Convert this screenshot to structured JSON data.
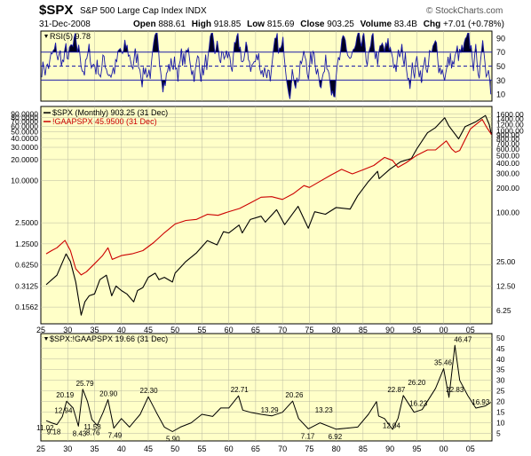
{
  "header": {
    "symbol": "$SPX",
    "description": "S&P 500 Large Cap Index INDX",
    "credit": "© StockCharts.com",
    "date": "31-Dec-2008",
    "ohlc": [
      {
        "label": "Open",
        "value": "888.61"
      },
      {
        "label": "High",
        "value": "918.85"
      },
      {
        "label": "Low",
        "value": "815.69"
      },
      {
        "label": "Close",
        "value": "903.25"
      },
      {
        "label": "Volume",
        "value": "83.4B"
      },
      {
        "label": "Chg",
        "value": "+7.01 (+0.78%)"
      }
    ]
  },
  "colors": {
    "panel_bg": "#ffffc8",
    "rsi": "#1a1aa8",
    "price": "#000000",
    "gaap": "#cc0000",
    "ratio": "#000000",
    "grid": "#b8b8a0"
  },
  "chart_data": [
    {
      "type": "line",
      "name": "rsi-panel",
      "legend": "RSI(5) 9.78",
      "ylim": [
        0,
        100
      ],
      "right_ticks": [
        "90",
        "70",
        "50",
        "30",
        "10"
      ],
      "reference_lines": [
        70,
        50,
        30
      ],
      "fill_thresholds": [
        70,
        30
      ],
      "x_range": [
        1925,
        2009
      ],
      "current_value": 9.78
    },
    {
      "type": "line",
      "name": "price-panel",
      "scale": "log",
      "legend": [
        {
          "text": "$SPX (Monthly) 903.25 (31 Dec)",
          "color": "#000000"
        },
        {
          "text": "!GAAPSPX 45.9500 (31 Dec)",
          "color": "#cc0000"
        }
      ],
      "left_axis_ylim": [
        0.09,
        115
      ],
      "left_ticks": [
        "90.0000",
        "80.0000",
        "70.0000",
        "60.0000",
        "50.0000",
        "40.0000",
        "30.0000",
        "20.0000",
        "10.0000",
        "2.5000",
        "1.2500",
        "0.6250",
        "0.3125",
        "0.1562"
      ],
      "right_axis_ylim": [
        4.3,
        2000
      ],
      "right_ticks": [
        "1600.00",
        "1400.00",
        "1200.00",
        "1000.00",
        "900.00",
        "800.00",
        "700.00",
        "600.00",
        "500.00",
        "400.00",
        "300.00",
        "200.00",
        "100.00",
        "25.00",
        "12.50",
        "6.25"
      ],
      "x_range": [
        1925,
        2009
      ],
      "series": [
        {
          "name": "$SPX (Monthly)",
          "axis": "right",
          "color": "#000000",
          "x": [
            1926,
            1928,
            1929.7,
            1930.5,
            1931.5,
            1932.5,
            1933.2,
            1934,
            1935,
            1936,
            1937.2,
            1938.2,
            1939,
            1940,
            1941,
            1942.3,
            1943,
            1944,
            1945,
            1946.3,
            1947,
            1948,
            1949.5,
            1950,
            1952,
            1954,
            1956,
            1957.8,
            1959,
            1960,
            1961.9,
            1962.5,
            1964,
            1966,
            1966.8,
            1968.9,
            1970.4,
            1972.9,
            1974.8,
            1976,
            1978,
            1980,
            1982.6,
            1984,
            1986,
            1987.7,
            1988,
            1990,
            1992,
            1994,
            1995,
            1997,
            1998.5,
            2000.2,
            2001,
            2002.8,
            2004,
            2006,
            2007.8,
            2008.5,
            2008.9
          ],
          "y": [
            13,
            17,
            31,
            25,
            14,
            5.5,
            8,
            9.5,
            10,
            15,
            17,
            9.5,
            12.5,
            11,
            10,
            8,
            11,
            12,
            16,
            18,
            15,
            16,
            14,
            18,
            25,
            32,
            45,
            40,
            58,
            56,
            70,
            56,
            82,
            90,
            76,
            108,
            71,
            119,
            64,
            102,
            95,
            115,
            110,
            160,
            240,
            320,
            260,
            340,
            420,
            460,
            600,
            950,
            1100,
            1450,
            1150,
            800,
            1130,
            1300,
            1550,
            1200,
            903
          ]
        },
        {
          "name": "!GAAPSPX",
          "axis": "left",
          "color": "#cc0000",
          "x": [
            1926,
            1927,
            1928,
            1929.5,
            1930.5,
            1931.5,
            1932.5,
            1933.5,
            1935,
            1936.5,
            1937.5,
            1938.3,
            1940,
            1942,
            1944,
            1946,
            1948,
            1950,
            1952,
            1954,
            1956,
            1958,
            1960,
            1962,
            1964,
            1966,
            1968,
            1970,
            1972,
            1974,
            1975,
            1977,
            1979,
            1981,
            1983,
            1985,
            1987,
            1989,
            1990.5,
            1991.5,
            1993,
            1995,
            1997,
            1998.5,
            2000.5,
            2001.5,
            2002.2,
            2003,
            2005,
            2007.2,
            2008,
            2008.9
          ],
          "y": [
            0.9,
            1.0,
            1.1,
            1.4,
            1.0,
            0.55,
            0.45,
            0.5,
            0.65,
            0.85,
            1.1,
            0.75,
            0.85,
            0.9,
            1.0,
            1.3,
            1.8,
            2.4,
            2.7,
            2.8,
            3.3,
            3.2,
            3.6,
            4.0,
            4.8,
            5.8,
            5.9,
            5.4,
            6.5,
            8.5,
            8.0,
            9.8,
            12.0,
            14.5,
            12.5,
            14.3,
            16.5,
            21.5,
            19.5,
            15.5,
            18.0,
            23.0,
            27.5,
            27.5,
            37.0,
            28.5,
            25.5,
            27.0,
            55.0,
            75.0,
            58.0,
            45.95
          ]
        }
      ]
    },
    {
      "type": "line",
      "name": "ratio-panel",
      "legend": "$SPX:!GAAPSPX 19.66 (31 Dec)",
      "ylim": [
        1.5,
        52
      ],
      "right_ticks": [
        "50",
        "45",
        "40",
        "35",
        "30",
        "25",
        "20",
        "15",
        "10",
        "5"
      ],
      "x_range": [
        1925,
        2009
      ],
      "series": [
        {
          "name": "$SPX:!GAAPSPX",
          "color": "#000000",
          "x": [
            1926,
            1927,
            1928,
            1929,
            1929.8,
            1931,
            1932,
            1932.8,
            1933.7,
            1934.5,
            1935.5,
            1936.6,
            1937.5,
            1938.6,
            1940,
            1941.5,
            1942.5,
            1943.5,
            1945,
            1946.5,
            1948,
            1949.5,
            1951,
            1953,
            1955,
            1957,
            1958.5,
            1960,
            1961.8,
            1962.6,
            1964,
            1966,
            1968,
            1970,
            1971.9,
            1973,
            1974.8,
            1977,
            1980,
            1982,
            1984,
            1986,
            1987.5,
            1987.9,
            1989,
            1990.5,
            1991.5,
            1992.5,
            1994.5,
            1996,
            1998.5,
            2000,
            2001,
            2002.1,
            2003,
            2004.5,
            2006,
            2007.8,
            2008.8
          ],
          "y": [
            11.02,
            10,
            9.18,
            12.94,
            20.19,
            17,
            8.43,
            25.79,
            20,
            11.58,
            8.76,
            15,
            20.9,
            7.49,
            12,
            8,
            11,
            14,
            22.3,
            15,
            8,
            5.9,
            8,
            10,
            14,
            13,
            17,
            17,
            22.71,
            16,
            15,
            14,
            13.29,
            15,
            20.26,
            12,
            7.17,
            10,
            7,
            7.5,
            8,
            14,
            20,
            13.23,
            12,
            6.92,
            12.04,
            22.87,
            15,
            16.23,
            26.2,
            35.46,
            22,
            46.47,
            30,
            22.83,
            16.93,
            18,
            19.66
          ]
        }
      ],
      "data_labels": [
        {
          "x": 1925.8,
          "y": 11.02,
          "text": "11.02"
        },
        {
          "x": 1927.4,
          "y": 9.18,
          "text": "9.18"
        },
        {
          "x": 1929.2,
          "y": 12.94,
          "text": "12.94"
        },
        {
          "x": 1929.5,
          "y": 20.19,
          "text": "20.19"
        },
        {
          "x": 1932.2,
          "y": 8.43,
          "text": "8.43"
        },
        {
          "x": 1933.2,
          "y": 25.79,
          "text": "25.79"
        },
        {
          "x": 1934.6,
          "y": 11.58,
          "text": "11.58"
        },
        {
          "x": 1934.7,
          "y": 8.76,
          "text": "8.76"
        },
        {
          "x": 1937.6,
          "y": 20.9,
          "text": "20.90"
        },
        {
          "x": 1938.8,
          "y": 7.49,
          "text": "7.49"
        },
        {
          "x": 1945.1,
          "y": 22.3,
          "text": "22.30"
        },
        {
          "x": 1949.6,
          "y": 5.9,
          "text": "5.90"
        },
        {
          "x": 1962.0,
          "y": 22.71,
          "text": "22.71"
        },
        {
          "x": 1967.6,
          "y": 13.29,
          "text": "13.29"
        },
        {
          "x": 1972.2,
          "y": 20.26,
          "text": "20.26"
        },
        {
          "x": 1974.7,
          "y": 7.17,
          "text": "7.17"
        },
        {
          "x": 1977.7,
          "y": 13.23,
          "text": "13.23"
        },
        {
          "x": 1979.8,
          "y": 6.92,
          "text": "6.92"
        },
        {
          "x": 1990.3,
          "y": 12.04,
          "text": "12.04"
        },
        {
          "x": 1991.2,
          "y": 22.87,
          "text": "22.87"
        },
        {
          "x": 1995.3,
          "y": 16.23,
          "text": "16.23"
        },
        {
          "x": 1995.0,
          "y": 26.2,
          "text": "26.20"
        },
        {
          "x": 1999.9,
          "y": 35.46,
          "text": "35.46"
        },
        {
          "x": 2003.6,
          "y": 46.47,
          "text": "46.47"
        },
        {
          "x": 2002.1,
          "y": 22.83,
          "text": "22.83"
        },
        {
          "x": 2006.9,
          "y": 16.93,
          "text": "16.93"
        }
      ]
    }
  ],
  "x_ticks": [
    {
      "year": 1925,
      "label": "25"
    },
    {
      "year": 1930,
      "label": "30"
    },
    {
      "year": 1935,
      "label": "35"
    },
    {
      "year": 1940,
      "label": "40"
    },
    {
      "year": 1945,
      "label": "45"
    },
    {
      "year": 1950,
      "label": "50"
    },
    {
      "year": 1955,
      "label": "55"
    },
    {
      "year": 1960,
      "label": "60"
    },
    {
      "year": 1965,
      "label": "65"
    },
    {
      "year": 1970,
      "label": "70"
    },
    {
      "year": 1975,
      "label": "75"
    },
    {
      "year": 1980,
      "label": "80"
    },
    {
      "year": 1985,
      "label": "85"
    },
    {
      "year": 1990,
      "label": "90"
    },
    {
      "year": 1995,
      "label": "95"
    },
    {
      "year": 2000,
      "label": "00"
    },
    {
      "year": 2005,
      "label": "05"
    }
  ]
}
